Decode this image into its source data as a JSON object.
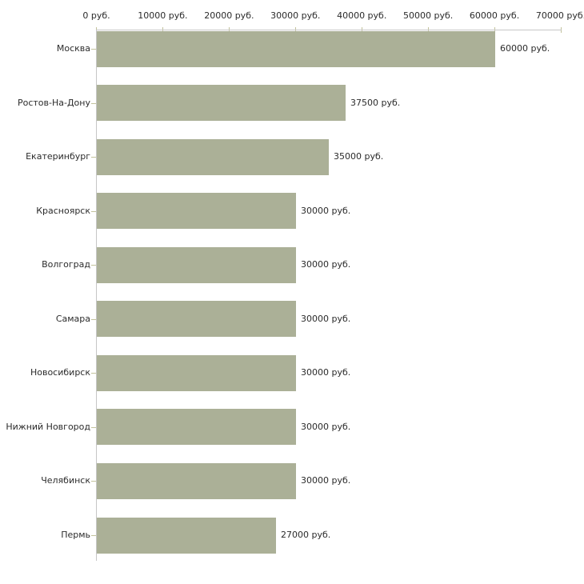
{
  "chart_data": {
    "type": "bar",
    "orientation": "horizontal",
    "title": "",
    "xlabel": "",
    "ylabel": "",
    "categories": [
      "Москва",
      "Ростов-На-Дону",
      "Екатеринбург",
      "Красноярск",
      "Волгоград",
      "Самара",
      "Новосибирск",
      "Нижний Новгород",
      "Челябинск",
      "Пермь"
    ],
    "values": [
      60000,
      37500,
      35000,
      30000,
      30000,
      30000,
      30000,
      30000,
      30000,
      27000
    ],
    "value_labels": [
      "60000 руб.",
      "37500 руб.",
      "35000 руб.",
      "30000 руб.",
      "30000 руб.",
      "30000 руб.",
      "30000 руб.",
      "30000 руб.",
      "30000 руб.",
      "27000 руб."
    ],
    "x_ticks": [
      0,
      10000,
      20000,
      30000,
      40000,
      50000,
      60000,
      70000
    ],
    "x_tick_labels": [
      "0 руб.",
      "10000 руб.",
      "20000 руб.",
      "30000 руб.",
      "40000 руб.",
      "50000 руб.",
      "60000 руб.",
      "70000 руб."
    ],
    "xlim": [
      0,
      70000
    ],
    "grid": false,
    "legend": false,
    "axis_position": "top",
    "colors": {
      "bar": "#abb097",
      "axis_line": "#c6c6c6",
      "tick_mark": "#c2c29c",
      "text": "#2b2b2b",
      "background": "#ffffff"
    }
  }
}
